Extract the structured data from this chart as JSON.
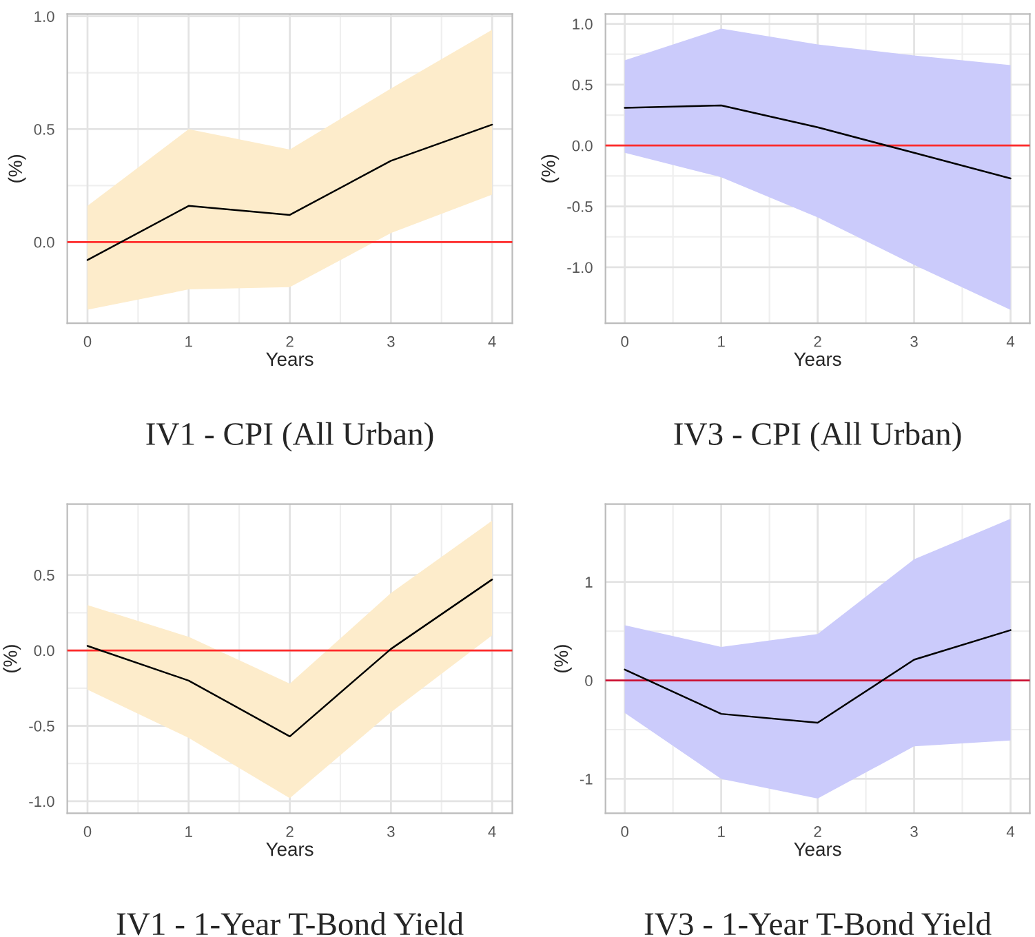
{
  "chart_data": [
    {
      "type": "line",
      "title": "IV1 - CPI (All Urban)",
      "xlabel": "Years",
      "ylabel": "(%)",
      "x": [
        0,
        1,
        2,
        3,
        4
      ],
      "xlim": [
        -0.2,
        4.2
      ],
      "xticks": [
        0,
        1,
        2,
        3,
        4
      ],
      "ylim": [
        -0.36,
        1.01
      ],
      "yticks": [
        {
          "value": 0,
          "label": "0.0"
        },
        0.5,
        {
          "value": 1,
          "label": "1.0"
        }
      ],
      "grid": true,
      "colors": [
        "#fdeccb"
      ],
      "series": [
        {
          "color": "#000000",
          "values": [
            -0.08,
            0.16,
            0.12,
            0.36,
            0.52
          ],
          "lower": [
            -0.3,
            -0.21,
            -0.2,
            0.04,
            0.21
          ],
          "upper": [
            0.16,
            0.5,
            0.41,
            0.68,
            0.94
          ]
        }
      ],
      "ref_lines": [
        {
          "axis": "y",
          "value": 0,
          "color": "#ff2a2a"
        }
      ]
    },
    {
      "type": "line",
      "title": "IV3 - CPI (All Urban)",
      "xlabel": "Years",
      "ylabel": "(%)",
      "x": [
        0,
        1,
        2,
        3,
        4
      ],
      "xlim": [
        -0.2,
        4.2
      ],
      "xticks": [
        0,
        1,
        2,
        3,
        4
      ],
      "ylim": [
        -1.46,
        1.08
      ],
      "yticks": [
        {
          "value": -1,
          "label": "-1.0"
        },
        {
          "value": -0.5,
          "label": "-0.5"
        },
        {
          "value": 0,
          "label": "0.0"
        },
        0.5,
        {
          "value": 1,
          "label": "1.0"
        }
      ],
      "grid": true,
      "colors": [
        "#cbcbfb"
      ],
      "series": [
        {
          "color": "#000000",
          "values": [
            0.31,
            0.33,
            0.15,
            -0.06,
            -0.27
          ],
          "lower": [
            -0.06,
            -0.26,
            -0.59,
            -0.98,
            -1.35
          ],
          "upper": [
            0.7,
            0.96,
            0.83,
            0.74,
            0.66
          ]
        }
      ],
      "ref_lines": [
        {
          "axis": "y",
          "value": 0,
          "color": "#ff2a2a"
        }
      ]
    },
    {
      "type": "line",
      "title": "IV1 - 1-Year T-Bond Yield",
      "xlabel": "Years",
      "ylabel": "(%)",
      "x": [
        0,
        1,
        2,
        3,
        4
      ],
      "xlim": [
        -0.2,
        4.2
      ],
      "xticks": [
        0,
        1,
        2,
        3,
        4
      ],
      "ylim": [
        -1.08,
        0.97
      ],
      "yticks": [
        {
          "value": -1,
          "label": "-1.0"
        },
        {
          "value": -0.5,
          "label": "-0.5"
        },
        {
          "value": 0,
          "label": "0.0"
        },
        0.5
      ],
      "grid": true,
      "colors": [
        "#fdeccb"
      ],
      "series": [
        {
          "color": "#000000",
          "values": [
            0.03,
            -0.2,
            -0.57,
            0.01,
            0.47
          ],
          "lower": [
            -0.26,
            -0.58,
            -0.98,
            -0.41,
            0.1
          ],
          "upper": [
            0.3,
            0.09,
            -0.22,
            0.38,
            0.86
          ]
        }
      ],
      "ref_lines": [
        {
          "axis": "y",
          "value": 0,
          "color": "#ff2a2a"
        }
      ]
    },
    {
      "type": "line",
      "title": "IV3 - 1-Year T-Bond Yield",
      "xlabel": "Years",
      "ylabel": "(%)",
      "x": [
        0,
        1,
        2,
        3,
        4
      ],
      "xlim": [
        -0.2,
        4.2
      ],
      "xticks": [
        0,
        1,
        2,
        3,
        4
      ],
      "ylim": [
        -1.35,
        1.79
      ],
      "yticks": [
        {
          "value": -1,
          "label": "-1"
        },
        0,
        1
      ],
      "grid": true,
      "colors": [
        "#cbcbfb"
      ],
      "series": [
        {
          "color": "#000000",
          "values": [
            0.11,
            -0.34,
            -0.43,
            0.21,
            0.51
          ],
          "lower": [
            -0.33,
            -1.0,
            -1.2,
            -0.67,
            -0.61
          ],
          "upper": [
            0.56,
            0.34,
            0.47,
            1.23,
            1.64
          ]
        }
      ],
      "ref_lines": [
        {
          "axis": "y",
          "value": 0,
          "color": "#cc1133"
        }
      ]
    }
  ]
}
